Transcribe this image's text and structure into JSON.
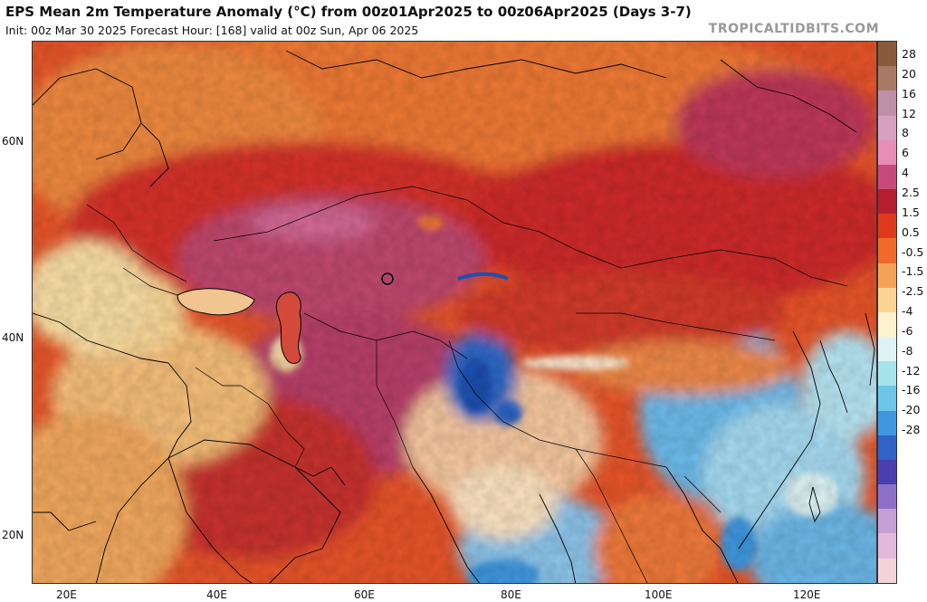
{
  "header": {
    "title": "EPS Mean 2m Temperature Anomaly (°C) from 00z01Apr2025 to 00z06Apr2025 (Days 3-7)",
    "subtitle": "Init: 00z Mar 30 2025   Forecast Hour: [168]   valid at 00z Sun, Apr 06 2025",
    "brand": "TROPICALTIDBITS.COM"
  },
  "axes": {
    "lat_labels": [
      "60N",
      "40N",
      "20N"
    ],
    "lon_labels": [
      "20E",
      "40E",
      "60E",
      "80E",
      "100E",
      "120E"
    ]
  },
  "colorbar": {
    "labels": [
      "28",
      "20",
      "16",
      "12",
      "8",
      "6",
      "4",
      "2.5",
      "1.5",
      "0.5",
      "-0.5",
      "-1.5",
      "-2.5",
      "-4",
      "-6",
      "-8",
      "-12",
      "-16",
      "-20",
      "-28"
    ],
    "colors": [
      "#8a5a3c",
      "#a87a66",
      "#c08fa8",
      "#d6a0c0",
      "#e88cb8",
      "#c94a7a",
      "#b51e2e",
      "#e03a1e",
      "#f06a2a",
      "#f6a256",
      "#fbd494",
      "#fdf2cf",
      "#ddf3f5",
      "#a6e4ec",
      "#6cc6ea",
      "#3f98df",
      "#2f63c8",
      "#4a3fb0",
      "#8e6fc9",
      "#c5a0d6",
      "#e2b8dc",
      "#f3d2d8"
    ]
  }
}
